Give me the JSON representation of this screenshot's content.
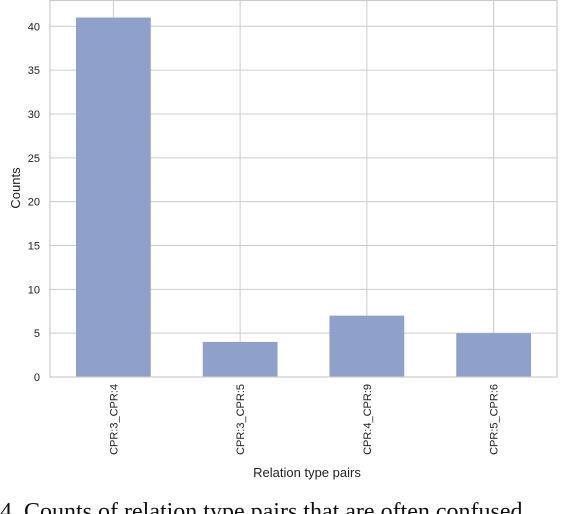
{
  "chart_data": {
    "type": "bar",
    "categories": [
      "CPR:3_CPR:4",
      "CPR:3_CPR:5",
      "CPR:4_CPR:9",
      "CPR:5_CPR:6"
    ],
    "values": [
      41,
      4,
      7,
      5
    ],
    "title": "",
    "xlabel": "Relation type pairs",
    "ylabel": "Counts",
    "ylim": [
      0,
      43
    ],
    "yticks": [
      0,
      5,
      10,
      15,
      20,
      25,
      30,
      35,
      40
    ],
    "grid": true,
    "bar_color": "#8fa1cb",
    "grid_color": "#cccccc",
    "axis_color": "#cccccc"
  },
  "caption": "4. Counts of relation type pairs that are often confused"
}
